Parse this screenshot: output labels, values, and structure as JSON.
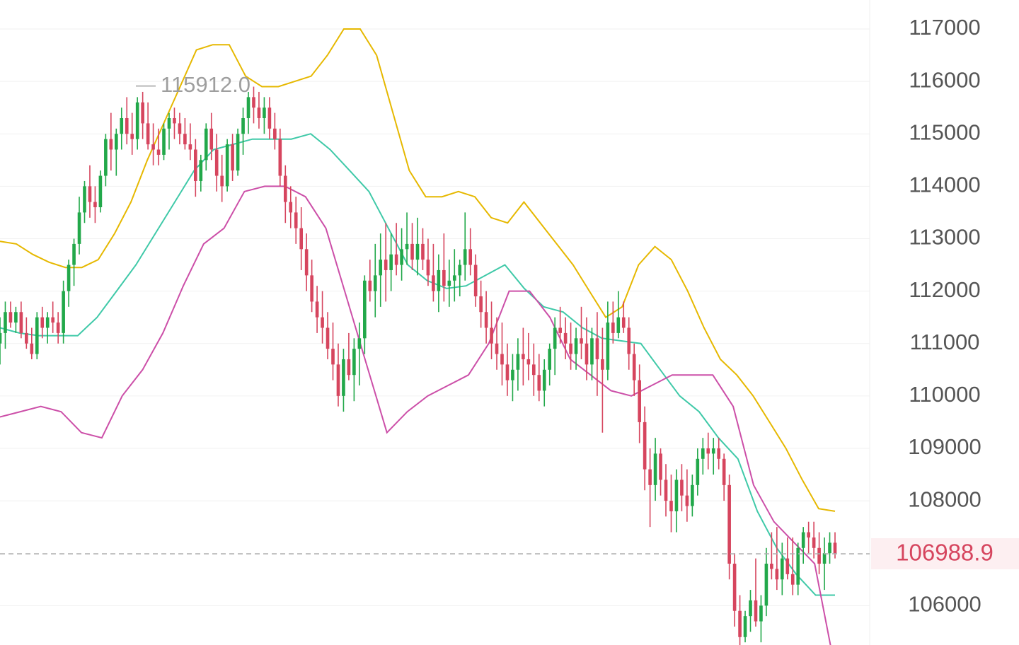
{
  "chart_data": {
    "type": "candlestick",
    "title": "",
    "ylim": [
      105250,
      117450
    ],
    "y_ticks": [
      "117000",
      "116000",
      "115000",
      "114000",
      "113000",
      "112000",
      "111000",
      "110000",
      "109000",
      "108000",
      "106000"
    ],
    "last_price": "106988.9",
    "max_label": "115912.0",
    "grid": true,
    "colors": {
      "up": "#22a84a",
      "down": "#d6455e",
      "upper_band": "#e6b800",
      "middle_band": "#3fc9a8",
      "lower_band": "#cc4fa8",
      "price_line": "#b0b0b0",
      "price_badge_bg": "#fdeff1",
      "price_text": "#d6455e"
    },
    "candles": [
      [
        111000,
        111500,
        110600,
        111200
      ],
      [
        111200,
        111800,
        110900,
        111600
      ],
      [
        111600,
        111800,
        111300,
        111400
      ],
      [
        111400,
        111700,
        111200,
        111600
      ],
      [
        111600,
        111800,
        111100,
        111200
      ],
      [
        111200,
        111500,
        110900,
        111000
      ],
      [
        111000,
        111300,
        110700,
        110800
      ],
      [
        110800,
        111600,
        110700,
        111500
      ],
      [
        111500,
        111700,
        111100,
        111300
      ],
      [
        111300,
        111600,
        111000,
        111500
      ],
      [
        111500,
        111800,
        111200,
        111400
      ],
      [
        111400,
        111600,
        111000,
        111200
      ],
      [
        111200,
        112200,
        111000,
        112000
      ],
      [
        112000,
        112600,
        111700,
        112500
      ],
      [
        112500,
        113000,
        112100,
        112900
      ],
      [
        112900,
        113800,
        112700,
        113500
      ],
      [
        113500,
        114100,
        113300,
        114000
      ],
      [
        114000,
        114400,
        113400,
        113700
      ],
      [
        113700,
        114000,
        113300,
        113600
      ],
      [
        113600,
        114300,
        113500,
        114200
      ],
      [
        114200,
        115000,
        114000,
        114900
      ],
      [
        114900,
        115400,
        114300,
        114700
      ],
      [
        114700,
        115100,
        114200,
        115000
      ],
      [
        115000,
        115500,
        114700,
        115300
      ],
      [
        115300,
        115700,
        114800,
        115000
      ],
      [
        115000,
        115400,
        114600,
        114900
      ],
      [
        114900,
        115700,
        114700,
        115600
      ],
      [
        115600,
        115800,
        114900,
        115200
      ],
      [
        115200,
        115600,
        114700,
        114800
      ],
      [
        114800,
        115200,
        114400,
        114700
      ],
      [
        114700,
        115100,
        114400,
        114600
      ],
      [
        114600,
        115200,
        114500,
        115100
      ],
      [
        115100,
        115400,
        114700,
        115300
      ],
      [
        115300,
        115500,
        114900,
        115200
      ],
      [
        115200,
        115400,
        114800,
        115000
      ],
      [
        115000,
        115300,
        114700,
        114800
      ],
      [
        114800,
        115200,
        114500,
        114700
      ],
      [
        114700,
        114900,
        113800,
        114100
      ],
      [
        114100,
        114600,
        113900,
        114500
      ],
      [
        114500,
        115200,
        114300,
        115100
      ],
      [
        115100,
        115400,
        114500,
        114700
      ],
      [
        114700,
        115000,
        113900,
        114200
      ],
      [
        114200,
        114600,
        113700,
        114000
      ],
      [
        114000,
        114900,
        113900,
        114800
      ],
      [
        114800,
        115000,
        114100,
        114300
      ],
      [
        114300,
        115100,
        114200,
        115000
      ],
      [
        115000,
        115500,
        114600,
        115300
      ],
      [
        115300,
        115800,
        115000,
        115700
      ],
      [
        115700,
        115900,
        115200,
        115500
      ],
      [
        115500,
        115800,
        115100,
        115300
      ],
      [
        115300,
        115700,
        115000,
        115500
      ],
      [
        115500,
        115700,
        114900,
        115100
      ],
      [
        115100,
        115400,
        114700,
        114900
      ],
      [
        114900,
        115100,
        114000,
        114200
      ],
      [
        114200,
        114400,
        113300,
        113700
      ],
      [
        113700,
        114000,
        113200,
        113500
      ],
      [
        113500,
        113800,
        112900,
        113200
      ],
      [
        113200,
        113600,
        112400,
        112800
      ],
      [
        112800,
        113100,
        112000,
        112300
      ],
      [
        112300,
        112600,
        111600,
        111800
      ],
      [
        111800,
        112100,
        111200,
        111500
      ],
      [
        111500,
        112000,
        111000,
        111300
      ],
      [
        111300,
        111600,
        110700,
        110900
      ],
      [
        110900,
        111400,
        110300,
        110600
      ],
      [
        110600,
        111000,
        109800,
        110000
      ],
      [
        110000,
        110900,
        109700,
        110700
      ],
      [
        110700,
        111200,
        110300,
        110400
      ],
      [
        110400,
        111100,
        109900,
        110900
      ],
      [
        110900,
        111400,
        110200,
        111100
      ],
      [
        111100,
        112300,
        110800,
        112200
      ],
      [
        112200,
        112600,
        111800,
        112000
      ],
      [
        112000,
        112900,
        111500,
        112300
      ],
      [
        112300,
        113100,
        111700,
        112600
      ],
      [
        112600,
        113300,
        111800,
        112400
      ],
      [
        112400,
        113100,
        112000,
        112700
      ],
      [
        112700,
        113300,
        112300,
        112500
      ],
      [
        112500,
        113200,
        112200,
        112800
      ],
      [
        112800,
        113500,
        112500,
        112900
      ],
      [
        112900,
        113300,
        112400,
        112600
      ],
      [
        112600,
        113400,
        112300,
        112900
      ],
      [
        112900,
        113200,
        112400,
        112600
      ],
      [
        112600,
        113000,
        112100,
        112300
      ],
      [
        112300,
        112900,
        111800,
        112000
      ],
      [
        112000,
        112700,
        111600,
        112400
      ],
      [
        112400,
        113100,
        111800,
        112100
      ],
      [
        112100,
        112600,
        111700,
        112200
      ],
      [
        112200,
        112800,
        111800,
        112300
      ],
      [
        112300,
        112600,
        111900,
        112500
      ],
      [
        112500,
        113500,
        112200,
        112800
      ],
      [
        112800,
        113200,
        112300,
        112500
      ],
      [
        112500,
        112700,
        111700,
        111900
      ],
      [
        111900,
        112200,
        111300,
        111600
      ],
      [
        111600,
        112000,
        111000,
        111300
      ],
      [
        111300,
        111800,
        110700,
        111000
      ],
      [
        111000,
        111500,
        110500,
        110800
      ],
      [
        110800,
        111400,
        110200,
        110600
      ],
      [
        110600,
        111000,
        110000,
        110300
      ],
      [
        110300,
        110800,
        109900,
        110500
      ],
      [
        110500,
        111100,
        110100,
        110800
      ],
      [
        110800,
        111300,
        110200,
        110700
      ],
      [
        110700,
        111200,
        110300,
        110600
      ],
      [
        110600,
        111000,
        110000,
        110400
      ],
      [
        110400,
        110800,
        109900,
        110100
      ],
      [
        110100,
        110700,
        109800,
        110500
      ],
      [
        110500,
        111000,
        110200,
        110900
      ],
      [
        110900,
        111500,
        110400,
        111300
      ],
      [
        111300,
        111700,
        111000,
        111200
      ],
      [
        111200,
        111500,
        110700,
        111000
      ],
      [
        111000,
        111400,
        110500,
        110800
      ],
      [
        110800,
        111300,
        110500,
        111100
      ],
      [
        111100,
        111700,
        110700,
        111000
      ],
      [
        111000,
        111500,
        110300,
        110600
      ],
      [
        110600,
        111300,
        110300,
        111100
      ],
      [
        111100,
        111600,
        110000,
        110700
      ],
      [
        110700,
        111300,
        109300,
        110500
      ],
      [
        110500,
        111800,
        110300,
        111400
      ],
      [
        111400,
        111800,
        111000,
        111200
      ],
      [
        111200,
        112000,
        111100,
        111500
      ],
      [
        111500,
        111800,
        111200,
        111300
      ],
      [
        111300,
        111500,
        110500,
        110800
      ],
      [
        110800,
        111000,
        110000,
        110300
      ],
      [
        110300,
        110600,
        109100,
        109500
      ],
      [
        109500,
        109800,
        108200,
        108600
      ],
      [
        108600,
        109000,
        107500,
        108300
      ],
      [
        108300,
        109200,
        108000,
        108900
      ],
      [
        108900,
        109000,
        108100,
        108400
      ],
      [
        108400,
        108700,
        107700,
        108000
      ],
      [
        108000,
        108500,
        107400,
        107800
      ],
      [
        107800,
        108600,
        107400,
        108400
      ],
      [
        108400,
        108700,
        107800,
        108100
      ],
      [
        108100,
        108600,
        107600,
        107900
      ],
      [
        107900,
        108500,
        107700,
        108300
      ],
      [
        108300,
        109000,
        108100,
        108800
      ],
      [
        108800,
        109200,
        108500,
        109000
      ],
      [
        109000,
        109300,
        108600,
        108900
      ],
      [
        108900,
        109200,
        108500,
        109000
      ],
      [
        109000,
        109200,
        108600,
        108800
      ],
      [
        108800,
        108900,
        108000,
        108300
      ],
      [
        108300,
        108500,
        106500,
        106800
      ],
      [
        106800,
        107000,
        105600,
        105900
      ],
      [
        105900,
        106200,
        105200,
        105400
      ],
      [
        105400,
        105900,
        105300,
        105800
      ],
      [
        105800,
        106300,
        105500,
        106100
      ],
      [
        106100,
        106900,
        105600,
        105700
      ],
      [
        105700,
        106200,
        105300,
        106000
      ],
      [
        106000,
        107100,
        105800,
        106800
      ],
      [
        106800,
        107400,
        106500,
        106700
      ],
      [
        106700,
        107500,
        106300,
        106500
      ],
      [
        106500,
        107200,
        106200,
        106900
      ],
      [
        106900,
        107300,
        106500,
        106600
      ],
      [
        106600,
        107300,
        106200,
        106400
      ],
      [
        106400,
        107200,
        106200,
        107100
      ],
      [
        107100,
        107500,
        106800,
        107400
      ],
      [
        107400,
        107600,
        107000,
        107300
      ],
      [
        107300,
        107600,
        106900,
        107100
      ],
      [
        107100,
        107400,
        106600,
        106800
      ],
      [
        106800,
        107300,
        106300,
        107000
      ],
      [
        107000,
        107400,
        106800,
        107200
      ],
      [
        107200,
        107400,
        106900,
        106989
      ]
    ],
    "upper_band": [
      112950,
      112900,
      112700,
      112550,
      112450,
      112450,
      112600,
      113100,
      113700,
      114500,
      115200,
      115900,
      116600,
      116700,
      116700,
      116100,
      115900,
      115900,
      116000,
      116100,
      116500,
      117000,
      117000,
      116500,
      115400,
      114300,
      113800,
      113800,
      113900,
      113800,
      113400,
      113300,
      113700,
      113300,
      112900,
      112500,
      112000,
      111500,
      111700,
      112500,
      112850,
      112600,
      112000,
      111300,
      110700,
      110400,
      110000,
      109500,
      109000,
      108400,
      107850,
      107800
    ],
    "middle_band": [
      111300,
      111200,
      111150,
      111150,
      111150,
      111500,
      112000,
      112500,
      113100,
      113700,
      114300,
      114700,
      114800,
      114900,
      114900,
      114900,
      115000,
      114700,
      114300,
      113900,
      113200,
      112500,
      112200,
      112050,
      112100,
      112300,
      112500,
      112050,
      111700,
      111600,
      111300,
      111100,
      111050,
      111000,
      110500,
      110000,
      109700,
      109200,
      108800,
      107800,
      107100,
      106600,
      106200,
      106200
    ],
    "lower_band": [
      109600,
      109700,
      109800,
      109700,
      109300,
      109200,
      110000,
      110500,
      111200,
      112100,
      112900,
      113200,
      113900,
      114000,
      114000,
      113800,
      113200,
      111900,
      110600,
      109300,
      109700,
      110000,
      110200,
      110400,
      111000,
      112000,
      112000,
      111500,
      110700,
      110400,
      110100,
      110000,
      110200,
      110400,
      110400,
      110400,
      109800,
      108300,
      107600,
      107200,
      106800,
      104800
    ]
  }
}
